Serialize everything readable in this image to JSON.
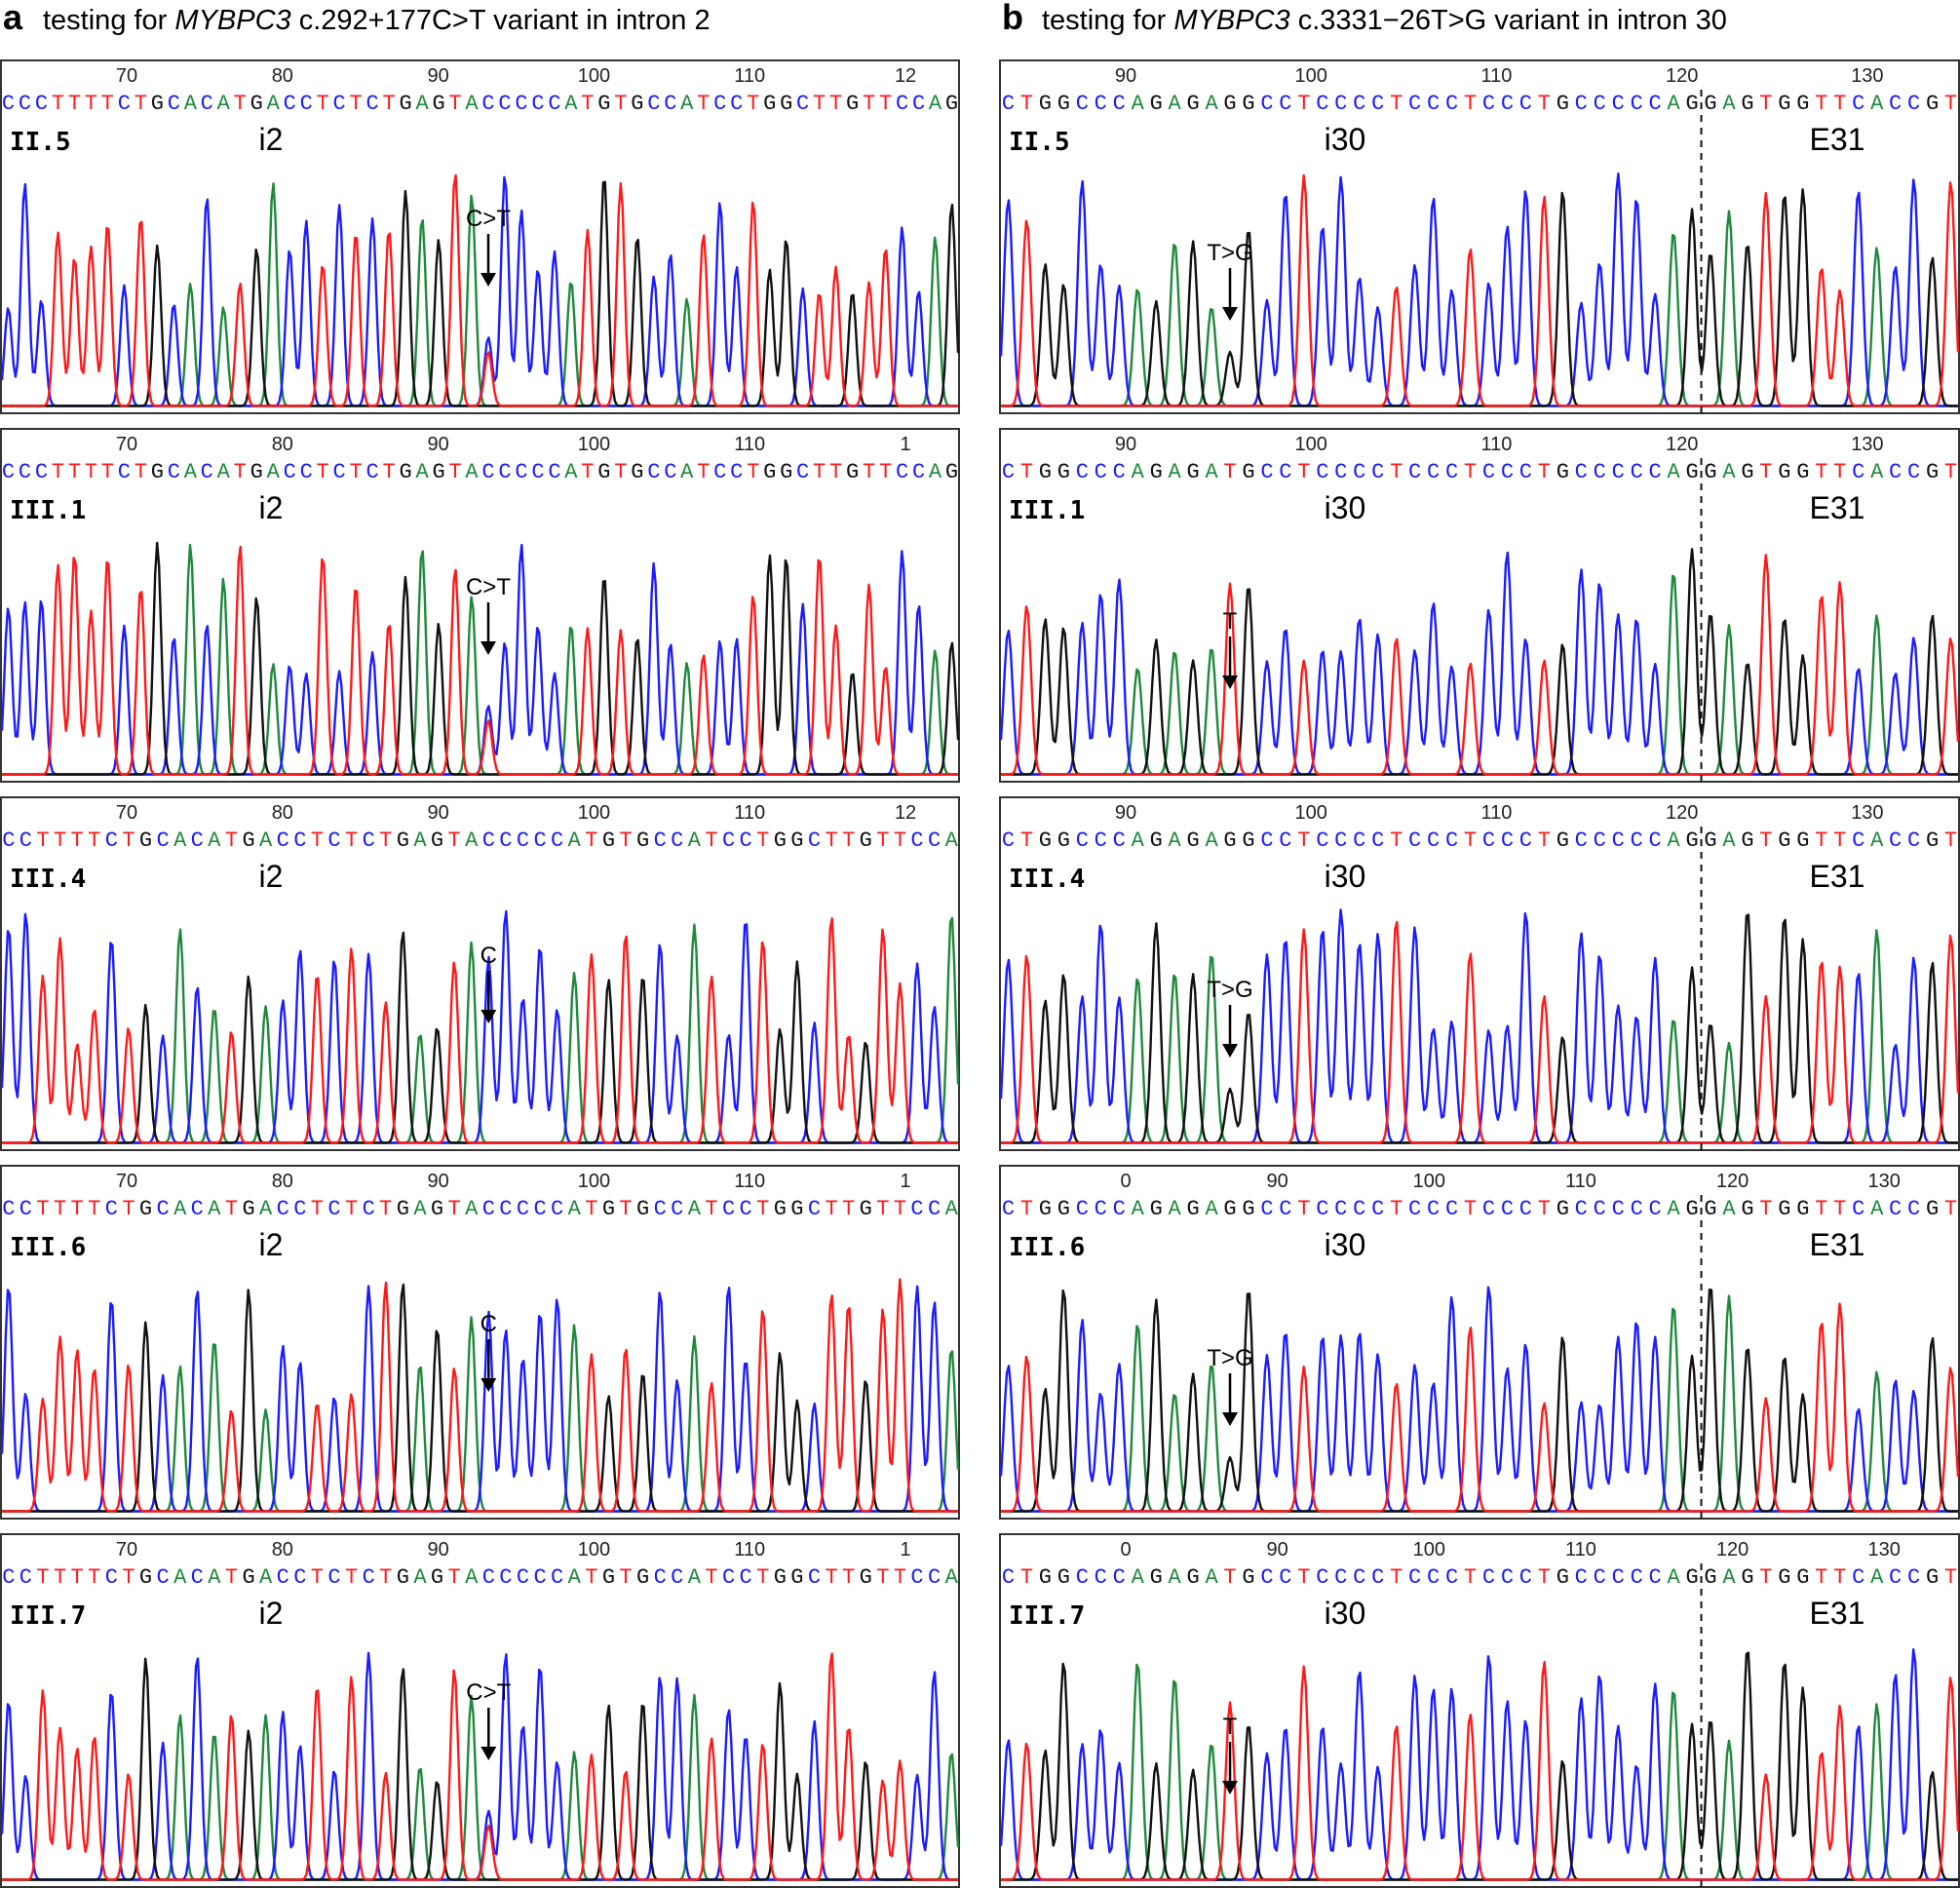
{
  "colors": {
    "A": "#1f8a3c",
    "C": "#1c1cff",
    "G": "#111111",
    "T": "#ff1a1a",
    "frame": "#333333",
    "text": "#000000"
  },
  "figure": {
    "columns": [
      {
        "letter": "a",
        "title_prefix": "testing for ",
        "title_gene": "MYBPC3",
        "title_suffix": " c.292+177C>T variant in intron 2",
        "region_left": "i2",
        "region_right": "",
        "has_boundary": false,
        "panels": [
          {
            "sample": "II.5",
            "sequence": "CCCTTTTCTGCACATGACCTCTCTGAGTACCCCCATGTGCCATCCTGGCTTGTTCCAG",
            "ticks": [
              "70",
              "80",
              "90",
              "100",
              "110",
              "12"
            ],
            "marker": "C>T",
            "marker_kind": "het"
          },
          {
            "sample": "III.1",
            "sequence": "CCCTTTTCTGCACATGACCTCTCTGAGTACCCCCATGTGCCATCCTGGCTTGTTCCAG",
            "ticks": [
              "70",
              "80",
              "90",
              "100",
              "110",
              "1"
            ],
            "marker": "C>T",
            "marker_kind": "het"
          },
          {
            "sample": "III.4",
            "sequence": "CCTTTTCTGCACATGACCTCTCTGAGTACCCCCATGTGCCATCCTGGCTTGTTCCA",
            "ticks": [
              "70",
              "80",
              "90",
              "100",
              "110",
              "12"
            ],
            "marker": "C",
            "marker_kind": "ref"
          },
          {
            "sample": "III.6",
            "sequence": "CCTTTTCTGCACATGACCTCTCTGAGTACCCCCATGTGCCATCCTGGCTTGTTCCA",
            "ticks": [
              "70",
              "80",
              "90",
              "100",
              "110",
              "1"
            ],
            "marker": "C",
            "marker_kind": "ref"
          },
          {
            "sample": "III.7",
            "sequence": "CCTTTTCTGCACATGACCTCTCTGAGTACCCCCATGTGCCATCCTGGCTTGTTCCA",
            "ticks": [
              "70",
              "80",
              "90",
              "100",
              "110",
              "1"
            ],
            "marker": "C>T",
            "marker_kind": "het"
          }
        ]
      },
      {
        "letter": "b",
        "title_prefix": "testing for ",
        "title_gene": "MYBPC3",
        "title_suffix": " c.3331−26T>G variant in intron 30",
        "region_left": "i30",
        "region_right": "E31",
        "has_boundary": true,
        "panels": [
          {
            "sample": "II.5",
            "sequence": "CTGGCCCAGAGAGGCCTCCCCTCCCTCCCTGCCCCCAGGAGTGGTTCACCGT",
            "ticks": [
              "90",
              "100",
              "110",
              "120",
              "130"
            ],
            "marker": "T>G",
            "marker_kind": "het"
          },
          {
            "sample": "III.1",
            "sequence": "CTGGCCCAGAGATGCCTCCCCTCCCTCCCTGCCCCCAGGAGTGGTTCACCGT",
            "ticks": [
              "90",
              "100",
              "110",
              "120",
              "130"
            ],
            "marker": "T",
            "marker_kind": "ref"
          },
          {
            "sample": "III.4",
            "sequence": "CTGGCCCAGAGAGGCCTCCCCTCCCTCCCTGCCCCCAGGAGTGGTTCACCGT",
            "ticks": [
              "90",
              "100",
              "110",
              "120",
              "130"
            ],
            "marker": "T>G",
            "marker_kind": "het"
          },
          {
            "sample": "III.6",
            "sequence": "CTGGCCCAGAGAGGCCTCCCCTCCCTCCCTGCCCCCAGGAGTGGTTCACCGT",
            "ticks": [
              "0",
              "90",
              "100",
              "110",
              "120",
              "130"
            ],
            "marker": "T>G",
            "marker_kind": "het"
          },
          {
            "sample": "III.7",
            "sequence": "CTGGCCCAGAGATGCCTCCCCTCCCTCCCTGCCCCCAGGAGTGGTTCACCGT",
            "ticks": [
              "0",
              "90",
              "100",
              "110",
              "120",
              "130"
            ],
            "marker": "T",
            "marker_kind": "ref"
          }
        ]
      }
    ]
  }
}
